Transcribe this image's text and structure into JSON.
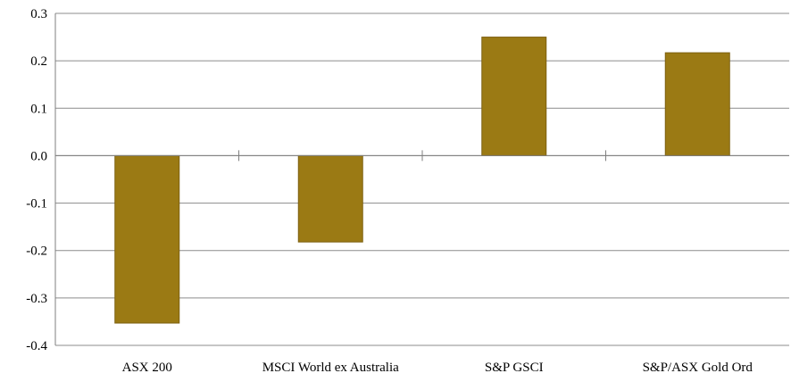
{
  "chart_data": {
    "type": "bar",
    "title": "",
    "xlabel": "",
    "ylabel": "",
    "categories": [
      "ASX 200",
      "MSCI World ex Australia",
      "S&P GSCI",
      "S&P/ASX Gold Ord"
    ],
    "values": [
      -0.353,
      -0.182,
      0.25,
      0.217
    ],
    "ylim": [
      -0.4,
      0.3
    ],
    "yticks": [
      0.3,
      0.2,
      0.1,
      0.0,
      -0.1,
      -0.2,
      -0.3,
      -0.4
    ],
    "ytick_labels": [
      "0.3",
      "0.2",
      "0.1",
      "0.0",
      "-0.1",
      "-0.2",
      "-0.3",
      "-0.4"
    ],
    "grid": true,
    "legend": "none",
    "bar_color": "#9b7a14",
    "bar_outline_color": "#7d6010",
    "grid_color": "#8c8c8c"
  }
}
